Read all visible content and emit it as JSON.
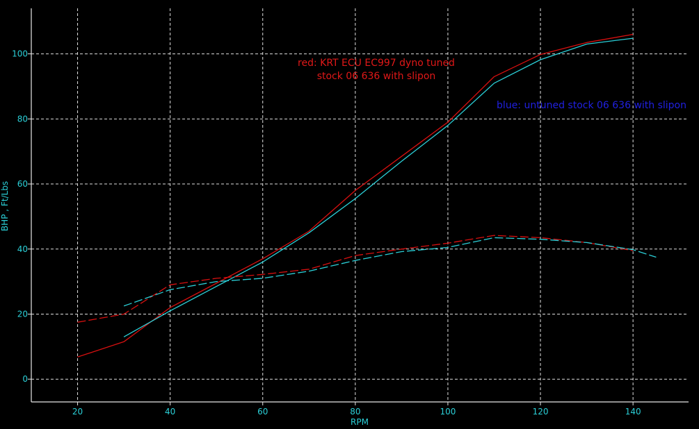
{
  "colors": {
    "background": "#000000",
    "axis": "#e8e8e8",
    "grid": "#e0e0e0",
    "tick_text": "#2bd0d8",
    "red_series": "#d81010",
    "blue_series": "#2bd0d8",
    "red_annotation": "#e01818",
    "blue_annotation": "#2020e0"
  },
  "chart_data": {
    "type": "line",
    "xlabel": "RPM",
    "ylabel": "BHP , Ft/Lbs",
    "xlim": [
      10,
      152
    ],
    "ylim": [
      -7,
      114
    ],
    "x_ticks": [
      20,
      40,
      60,
      80,
      100,
      120,
      140
    ],
    "y_ticks": [
      0,
      20,
      40,
      60,
      80,
      100
    ],
    "grid": true,
    "annotations": [
      {
        "id": "red",
        "lines": [
          "red: KRT ECU EC997 dyno tuned",
          "stock 06 636 with slipon"
        ],
        "color": "#e01818"
      },
      {
        "id": "blue",
        "lines": [
          "blue: untuned stock 06 636 with slipon"
        ],
        "color": "#2020e0"
      }
    ],
    "series": [
      {
        "key": "red_hp",
        "color": "#d81010",
        "dashed": false,
        "x": [
          20,
          30,
          40,
          50,
          60,
          70,
          80,
          90,
          100,
          110,
          120,
          130,
          140
        ],
        "y": [
          6.8,
          11.5,
          22,
          29.5,
          37,
          45.5,
          58,
          68.5,
          79,
          93,
          99.8,
          103.5,
          106
        ]
      },
      {
        "key": "blue_hp",
        "color": "#2bd0d8",
        "dashed": false,
        "x": [
          30,
          40,
          50,
          60,
          70,
          80,
          90,
          100,
          110,
          120,
          130,
          140
        ],
        "y": [
          13,
          21,
          28.5,
          36,
          45,
          55.5,
          67,
          78,
          91,
          98.2,
          103,
          104.8
        ]
      },
      {
        "key": "red_torque",
        "color": "#d81010",
        "dashed": true,
        "x": [
          20,
          30,
          40,
          50,
          60,
          70,
          80,
          90,
          100,
          110,
          120,
          130,
          140
        ],
        "y": [
          17.5,
          20,
          29,
          31,
          32.2,
          33.8,
          38,
          40,
          41.8,
          44.2,
          43.5,
          42,
          39.5
        ]
      },
      {
        "key": "blue_torque",
        "color": "#2bd0d8",
        "dashed": true,
        "x": [
          30,
          40,
          50,
          60,
          70,
          80,
          90,
          100,
          110,
          120,
          130,
          140,
          145
        ],
        "y": [
          22.5,
          27.5,
          30,
          31,
          33.2,
          36.5,
          39.2,
          40.5,
          43.5,
          43,
          42,
          39.8,
          37.5
        ]
      }
    ]
  }
}
